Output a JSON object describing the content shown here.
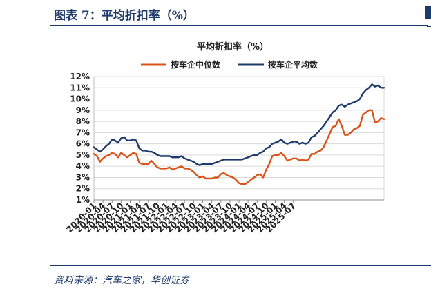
{
  "header": {
    "figure_title": "图表 7：平均折扣率（%）"
  },
  "footer": {
    "source": "资料来源：汽车之家，华创证券"
  },
  "colors": {
    "median": "#d95319",
    "mean": "#1d3a6b",
    "grid": "#d9d9d9",
    "accent": "#1d3a6b"
  },
  "chart_data": {
    "type": "line",
    "title": "平均折扣率（%）",
    "xlabel": "",
    "ylabel": "",
    "ylim": [
      1,
      12
    ],
    "yticks": [
      "1%",
      "2%",
      "3%",
      "4%",
      "5%",
      "6%",
      "7%",
      "8%",
      "9%",
      "10%",
      "11%",
      "12%"
    ],
    "grid": true,
    "legend_position": "top",
    "xticks": [
      "2020-01",
      "2020-04",
      "2020-07",
      "2020-10",
      "2021-01",
      "2021-04",
      "2021-07",
      "2021-10",
      "2022-01",
      "2022-04",
      "2022-07",
      "2022-10",
      "2023-01",
      "2023-04",
      "2023-07",
      "2023-10",
      "2024-01",
      "2024-04",
      "2024-07",
      "2024-10",
      "2025-01",
      "2025-04",
      "2025-07"
    ],
    "series": [
      {
        "name": "按车企中位数",
        "color": "#d95319",
        "values": [
          5.1,
          4.9,
          4.4,
          4.7,
          4.9,
          5.0,
          5.2,
          5.1,
          4.8,
          5.2,
          5.0,
          4.8,
          5.0,
          5.2,
          5.1,
          4.3,
          4.2,
          4.2,
          4.2,
          4.5,
          4.2,
          3.9,
          3.8,
          3.8,
          3.8,
          3.9,
          3.7,
          3.8,
          3.9,
          4.0,
          3.8,
          3.8,
          3.7,
          3.5,
          3.2,
          3.0,
          3.1,
          2.9,
          2.9,
          2.9,
          3.0,
          3.0,
          3.3,
          3.4,
          3.2,
          3.1,
          3.0,
          2.8,
          2.5,
          2.4,
          2.4,
          2.6,
          2.8,
          3.0,
          3.2,
          3.3,
          3.0,
          3.7,
          4.2,
          4.9,
          5.0,
          5.0,
          5.2,
          4.9,
          4.5,
          4.6,
          4.7,
          4.7,
          4.5,
          4.6,
          4.5,
          4.6,
          5.1,
          5.1,
          5.3,
          5.4,
          5.7,
          6.3,
          6.9,
          7.5,
          7.6,
          8.2,
          7.6,
          6.8,
          6.8,
          7.0,
          7.3,
          7.4,
          7.6,
          8.6,
          8.8,
          9.0,
          9.0,
          7.9,
          8.0,
          8.3,
          8.2
        ]
      },
      {
        "name": "按车企平均数",
        "color": "#1d3a6b",
        "values": [
          5.7,
          5.5,
          5.3,
          5.5,
          5.8,
          6.0,
          6.4,
          6.3,
          6.1,
          6.5,
          6.6,
          6.3,
          6.3,
          6.4,
          6.3,
          5.6,
          5.4,
          5.4,
          5.3,
          5.3,
          5.2,
          5.0,
          4.9,
          4.9,
          4.9,
          4.9,
          4.8,
          4.8,
          4.8,
          4.9,
          4.7,
          4.6,
          4.5,
          4.4,
          4.2,
          4.1,
          4.2,
          4.2,
          4.2,
          4.2,
          4.3,
          4.4,
          4.5,
          4.6,
          4.6,
          4.6,
          4.6,
          4.6,
          4.6,
          4.6,
          4.7,
          4.8,
          4.9,
          5.0,
          5.0,
          5.2,
          5.3,
          5.6,
          5.7,
          6.0,
          6.1,
          6.2,
          6.4,
          6.1,
          6.0,
          6.1,
          6.2,
          6.2,
          6.0,
          6.1,
          6.0,
          6.1,
          6.6,
          6.7,
          7.0,
          7.3,
          7.6,
          8.0,
          8.4,
          8.8,
          9.0,
          9.4,
          9.5,
          9.3,
          9.5,
          9.6,
          9.7,
          9.8,
          10.0,
          10.5,
          10.8,
          11.0,
          11.3,
          11.1,
          11.2,
          11.0,
          11.0
        ]
      }
    ]
  }
}
